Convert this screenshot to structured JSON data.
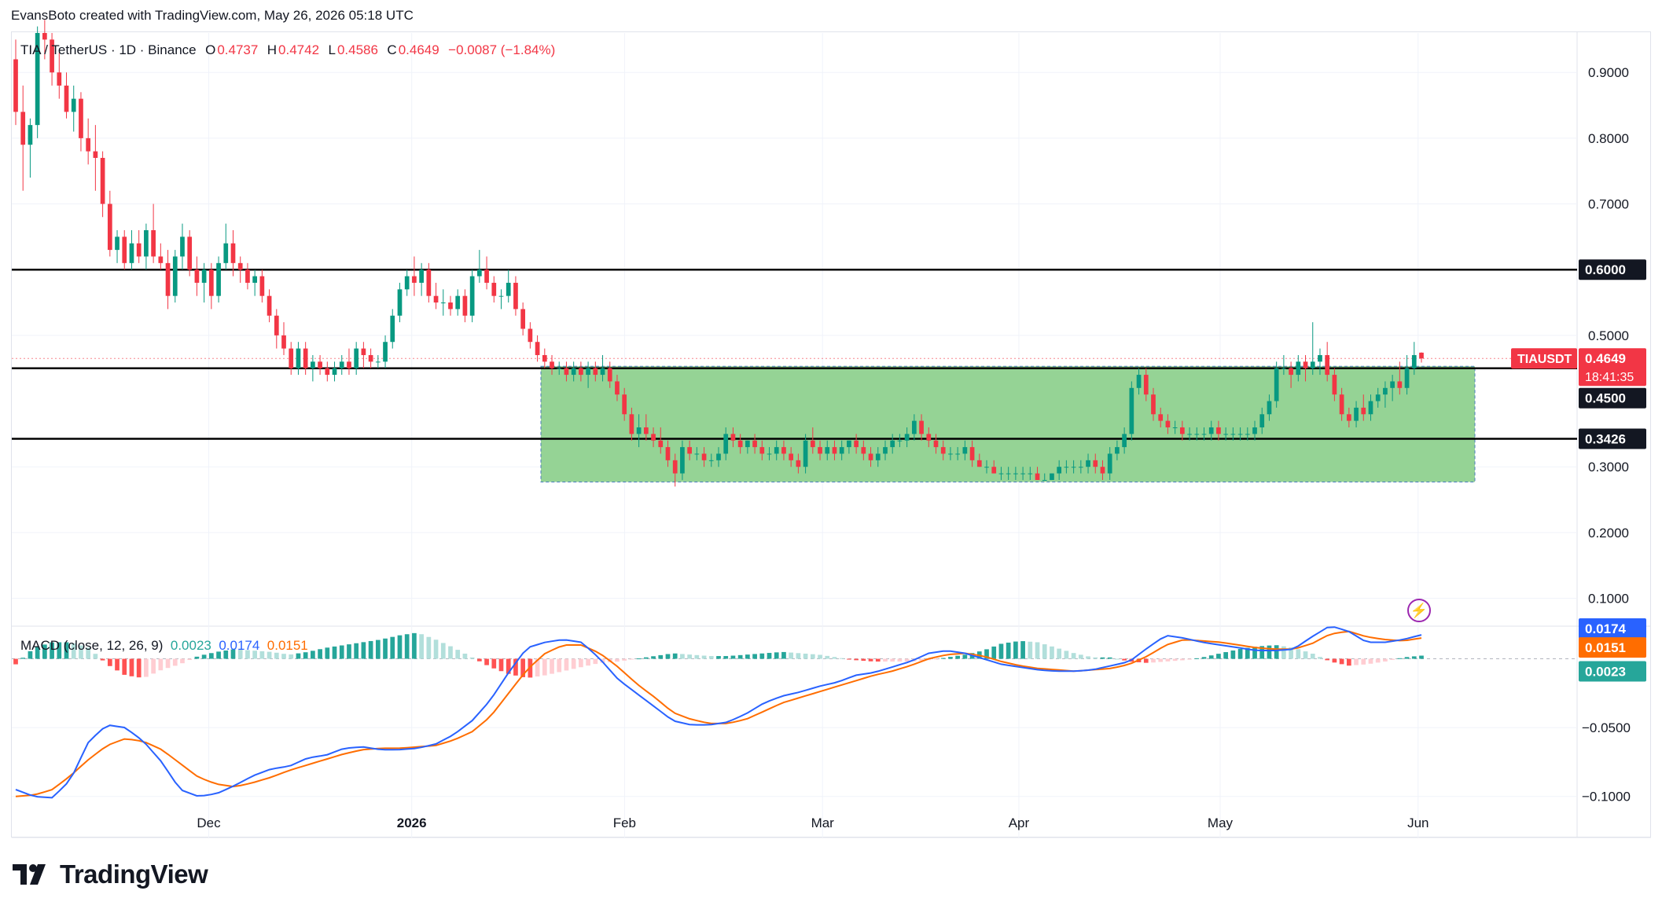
{
  "attribution": "EvansBoto created with TradingView.com, May 26, 2026 05:18 UTC",
  "legend": {
    "symbol": "TIA / TetherUS · 1D · Binance",
    "open_label": "O",
    "open": "0.4737",
    "high_label": "H",
    "high": "0.4742",
    "low_label": "L",
    "low": "0.4586",
    "close_label": "C",
    "close": "0.4649",
    "change": "−0.0087 (−1.84%)"
  },
  "macd_legend": {
    "label": "MACD (close, 12, 26, 9)",
    "hist": "0.0023",
    "macd": "0.0174",
    "signal": "0.0151"
  },
  "price_badge": {
    "symbol": "TIAUSDT",
    "price": "0.4649",
    "countdown": "18:41:35"
  },
  "level_labels": [
    "0.6000",
    "0.4500",
    "0.3426"
  ],
  "macd_badges": {
    "macd": "0.0174",
    "signal": "0.0151",
    "hist": "0.0023"
  },
  "brand": "TradingView",
  "colors": {
    "up": "#089981",
    "down": "#f23645",
    "macd": "#2962ff",
    "signal": "#ff6d00",
    "box": "#8fd18f",
    "hist_up_strong": "#26a69a",
    "hist_up_weak": "#b2dfdb",
    "hist_dn_strong": "#ff5252",
    "hist_dn_weak": "#ffcdd2"
  },
  "chart_data": {
    "type": "candlestick",
    "price_axis": {
      "ticks": [
        "0.9000",
        "0.8000",
        "0.7000",
        "0.5000",
        "0.3000",
        "0.2000",
        "0.1000"
      ],
      "range": [
        0.06,
        0.96
      ]
    },
    "macd_axis": {
      "ticks": [
        "-0.0500",
        "-0.1000"
      ],
      "range": [
        -0.115,
        0.022
      ]
    },
    "time_axis": {
      "labels": [
        "Dec",
        "2026",
        "Feb",
        "Mar",
        "Apr",
        "May",
        "Jun"
      ]
    },
    "horizontal_levels": [
      0.6,
      0.45,
      0.3426
    ],
    "range_box": {
      "low": 0.277,
      "high": 0.453,
      "from": "2026-01-18",
      "to": "2026-06-01"
    },
    "candles": [
      [
        0.92,
        0.95,
        0.82,
        0.84
      ],
      [
        0.84,
        0.88,
        0.72,
        0.79
      ],
      [
        0.79,
        0.83,
        0.74,
        0.82
      ],
      [
        0.82,
        0.97,
        0.8,
        0.96
      ],
      [
        0.96,
        0.98,
        0.92,
        0.95
      ],
      [
        0.95,
        0.96,
        0.88,
        0.9
      ],
      [
        0.9,
        0.93,
        0.86,
        0.88
      ],
      [
        0.88,
        0.9,
        0.83,
        0.84
      ],
      [
        0.84,
        0.88,
        0.81,
        0.86
      ],
      [
        0.86,
        0.87,
        0.78,
        0.8
      ],
      [
        0.8,
        0.83,
        0.76,
        0.78
      ],
      [
        0.78,
        0.82,
        0.72,
        0.77
      ],
      [
        0.77,
        0.78,
        0.68,
        0.7
      ],
      [
        0.7,
        0.72,
        0.62,
        0.63
      ],
      [
        0.63,
        0.66,
        0.61,
        0.65
      ],
      [
        0.65,
        0.66,
        0.6,
        0.61
      ],
      [
        0.61,
        0.66,
        0.6,
        0.64
      ],
      [
        0.64,
        0.66,
        0.61,
        0.62
      ],
      [
        0.62,
        0.67,
        0.6,
        0.66
      ],
      [
        0.66,
        0.7,
        0.61,
        0.62
      ],
      [
        0.62,
        0.64,
        0.6,
        0.61
      ],
      [
        0.61,
        0.63,
        0.54,
        0.56
      ],
      [
        0.56,
        0.63,
        0.55,
        0.62
      ],
      [
        0.62,
        0.67,
        0.6,
        0.65
      ],
      [
        0.65,
        0.66,
        0.59,
        0.6
      ],
      [
        0.6,
        0.62,
        0.56,
        0.58
      ],
      [
        0.58,
        0.61,
        0.55,
        0.6
      ],
      [
        0.6,
        0.61,
        0.54,
        0.56
      ],
      [
        0.56,
        0.62,
        0.55,
        0.61
      ],
      [
        0.61,
        0.67,
        0.6,
        0.64
      ],
      [
        0.64,
        0.66,
        0.59,
        0.61
      ],
      [
        0.61,
        0.62,
        0.58,
        0.6
      ],
      [
        0.6,
        0.61,
        0.57,
        0.58
      ],
      [
        0.58,
        0.6,
        0.56,
        0.59
      ],
      [
        0.59,
        0.6,
        0.55,
        0.56
      ],
      [
        0.56,
        0.57,
        0.52,
        0.53
      ],
      [
        0.53,
        0.54,
        0.48,
        0.5
      ],
      [
        0.5,
        0.52,
        0.47,
        0.48
      ],
      [
        0.48,
        0.49,
        0.44,
        0.45
      ],
      [
        0.45,
        0.49,
        0.44,
        0.48
      ],
      [
        0.48,
        0.49,
        0.44,
        0.45
      ],
      [
        0.45,
        0.47,
        0.43,
        0.46
      ],
      [
        0.46,
        0.47,
        0.44,
        0.45
      ],
      [
        0.45,
        0.46,
        0.43,
        0.44
      ],
      [
        0.44,
        0.46,
        0.43,
        0.45
      ],
      [
        0.45,
        0.47,
        0.44,
        0.46
      ],
      [
        0.46,
        0.48,
        0.44,
        0.45
      ],
      [
        0.45,
        0.49,
        0.44,
        0.48
      ],
      [
        0.48,
        0.49,
        0.45,
        0.47
      ],
      [
        0.47,
        0.48,
        0.45,
        0.46
      ],
      [
        0.46,
        0.47,
        0.45,
        0.46
      ],
      [
        0.46,
        0.5,
        0.45,
        0.49
      ],
      [
        0.49,
        0.54,
        0.48,
        0.53
      ],
      [
        0.53,
        0.58,
        0.52,
        0.57
      ],
      [
        0.57,
        0.6,
        0.56,
        0.59
      ],
      [
        0.59,
        0.62,
        0.56,
        0.58
      ],
      [
        0.58,
        0.61,
        0.56,
        0.6
      ],
      [
        0.6,
        0.61,
        0.55,
        0.56
      ],
      [
        0.56,
        0.58,
        0.54,
        0.55
      ],
      [
        0.55,
        0.57,
        0.53,
        0.55
      ],
      [
        0.55,
        0.56,
        0.53,
        0.54
      ],
      [
        0.54,
        0.57,
        0.53,
        0.56
      ],
      [
        0.56,
        0.57,
        0.52,
        0.53
      ],
      [
        0.53,
        0.6,
        0.52,
        0.59
      ],
      [
        0.59,
        0.63,
        0.58,
        0.6
      ],
      [
        0.6,
        0.62,
        0.57,
        0.58
      ],
      [
        0.58,
        0.59,
        0.55,
        0.56
      ],
      [
        0.56,
        0.57,
        0.54,
        0.56
      ],
      [
        0.56,
        0.6,
        0.55,
        0.58
      ],
      [
        0.58,
        0.59,
        0.53,
        0.54
      ],
      [
        0.54,
        0.55,
        0.5,
        0.51
      ],
      [
        0.51,
        0.52,
        0.48,
        0.49
      ],
      [
        0.49,
        0.5,
        0.46,
        0.47
      ],
      [
        0.47,
        0.48,
        0.45,
        0.46
      ],
      [
        0.46,
        0.47,
        0.44,
        0.45
      ],
      [
        0.45,
        0.46,
        0.44,
        0.45
      ],
      [
        0.45,
        0.46,
        0.43,
        0.44
      ],
      [
        0.44,
        0.46,
        0.43,
        0.45
      ],
      [
        0.45,
        0.46,
        0.43,
        0.44
      ],
      [
        0.44,
        0.46,
        0.42,
        0.45
      ],
      [
        0.45,
        0.46,
        0.43,
        0.44
      ],
      [
        0.44,
        0.47,
        0.43,
        0.45
      ],
      [
        0.45,
        0.46,
        0.42,
        0.43
      ],
      [
        0.43,
        0.44,
        0.4,
        0.41
      ],
      [
        0.41,
        0.42,
        0.37,
        0.38
      ],
      [
        0.38,
        0.39,
        0.34,
        0.35
      ],
      [
        0.35,
        0.38,
        0.33,
        0.36
      ],
      [
        0.36,
        0.38,
        0.34,
        0.35
      ],
      [
        0.35,
        0.36,
        0.33,
        0.34
      ],
      [
        0.34,
        0.36,
        0.32,
        0.33
      ],
      [
        0.33,
        0.34,
        0.3,
        0.31
      ],
      [
        0.31,
        0.32,
        0.27,
        0.29
      ],
      [
        0.29,
        0.34,
        0.28,
        0.33
      ],
      [
        0.33,
        0.34,
        0.31,
        0.32
      ],
      [
        0.32,
        0.33,
        0.31,
        0.32
      ],
      [
        0.32,
        0.33,
        0.3,
        0.31
      ],
      [
        0.31,
        0.32,
        0.3,
        0.31
      ],
      [
        0.31,
        0.33,
        0.3,
        0.32
      ],
      [
        0.32,
        0.36,
        0.31,
        0.35
      ],
      [
        0.35,
        0.36,
        0.33,
        0.34
      ],
      [
        0.34,
        0.35,
        0.32,
        0.33
      ],
      [
        0.33,
        0.34,
        0.32,
        0.34
      ],
      [
        0.34,
        0.35,
        0.32,
        0.33
      ],
      [
        0.33,
        0.34,
        0.31,
        0.32
      ],
      [
        0.32,
        0.33,
        0.31,
        0.32
      ],
      [
        0.32,
        0.34,
        0.31,
        0.33
      ],
      [
        0.33,
        0.34,
        0.31,
        0.32
      ],
      [
        0.32,
        0.33,
        0.3,
        0.31
      ],
      [
        0.31,
        0.32,
        0.29,
        0.3
      ],
      [
        0.3,
        0.35,
        0.29,
        0.34
      ],
      [
        0.34,
        0.36,
        0.32,
        0.33
      ],
      [
        0.33,
        0.34,
        0.31,
        0.32
      ],
      [
        0.32,
        0.34,
        0.31,
        0.33
      ],
      [
        0.33,
        0.34,
        0.31,
        0.32
      ],
      [
        0.32,
        0.34,
        0.31,
        0.33
      ],
      [
        0.33,
        0.34,
        0.32,
        0.34
      ],
      [
        0.34,
        0.35,
        0.32,
        0.33
      ],
      [
        0.33,
        0.34,
        0.31,
        0.32
      ],
      [
        0.32,
        0.33,
        0.3,
        0.31
      ],
      [
        0.31,
        0.33,
        0.3,
        0.32
      ],
      [
        0.32,
        0.34,
        0.31,
        0.33
      ],
      [
        0.33,
        0.35,
        0.32,
        0.34
      ],
      [
        0.34,
        0.35,
        0.33,
        0.34
      ],
      [
        0.34,
        0.36,
        0.33,
        0.35
      ],
      [
        0.35,
        0.38,
        0.34,
        0.37
      ],
      [
        0.37,
        0.38,
        0.34,
        0.35
      ],
      [
        0.35,
        0.36,
        0.33,
        0.34
      ],
      [
        0.34,
        0.35,
        0.32,
        0.33
      ],
      [
        0.33,
        0.34,
        0.31,
        0.32
      ],
      [
        0.32,
        0.33,
        0.31,
        0.32
      ],
      [
        0.32,
        0.33,
        0.31,
        0.32
      ],
      [
        0.32,
        0.34,
        0.31,
        0.33
      ],
      [
        0.33,
        0.34,
        0.3,
        0.31
      ],
      [
        0.31,
        0.32,
        0.3,
        0.3
      ],
      [
        0.3,
        0.31,
        0.29,
        0.3
      ],
      [
        0.3,
        0.31,
        0.29,
        0.29
      ],
      [
        0.29,
        0.3,
        0.28,
        0.29
      ],
      [
        0.29,
        0.3,
        0.28,
        0.29
      ],
      [
        0.29,
        0.3,
        0.28,
        0.29
      ],
      [
        0.29,
        0.3,
        0.28,
        0.29
      ],
      [
        0.29,
        0.3,
        0.28,
        0.29
      ],
      [
        0.29,
        0.3,
        0.28,
        0.28
      ],
      [
        0.28,
        0.29,
        0.28,
        0.28
      ],
      [
        0.28,
        0.29,
        0.28,
        0.29
      ],
      [
        0.29,
        0.31,
        0.28,
        0.3
      ],
      [
        0.3,
        0.31,
        0.29,
        0.3
      ],
      [
        0.3,
        0.31,
        0.29,
        0.3
      ],
      [
        0.3,
        0.31,
        0.29,
        0.3
      ],
      [
        0.3,
        0.32,
        0.29,
        0.31
      ],
      [
        0.31,
        0.32,
        0.29,
        0.3
      ],
      [
        0.3,
        0.31,
        0.28,
        0.29
      ],
      [
        0.29,
        0.33,
        0.28,
        0.32
      ],
      [
        0.32,
        0.34,
        0.31,
        0.33
      ],
      [
        0.33,
        0.36,
        0.32,
        0.35
      ],
      [
        0.35,
        0.43,
        0.34,
        0.42
      ],
      [
        0.42,
        0.45,
        0.41,
        0.44
      ],
      [
        0.44,
        0.45,
        0.4,
        0.41
      ],
      [
        0.41,
        0.42,
        0.37,
        0.38
      ],
      [
        0.38,
        0.39,
        0.36,
        0.37
      ],
      [
        0.37,
        0.38,
        0.35,
        0.36
      ],
      [
        0.36,
        0.37,
        0.35,
        0.36
      ],
      [
        0.36,
        0.37,
        0.34,
        0.35
      ],
      [
        0.35,
        0.36,
        0.34,
        0.35
      ],
      [
        0.35,
        0.36,
        0.34,
        0.35
      ],
      [
        0.35,
        0.36,
        0.34,
        0.35
      ],
      [
        0.35,
        0.37,
        0.34,
        0.36
      ],
      [
        0.36,
        0.37,
        0.34,
        0.35
      ],
      [
        0.35,
        0.36,
        0.34,
        0.35
      ],
      [
        0.35,
        0.36,
        0.34,
        0.35
      ],
      [
        0.35,
        0.36,
        0.34,
        0.35
      ],
      [
        0.35,
        0.36,
        0.34,
        0.35
      ],
      [
        0.35,
        0.37,
        0.34,
        0.36
      ],
      [
        0.36,
        0.39,
        0.35,
        0.38
      ],
      [
        0.38,
        0.41,
        0.37,
        0.4
      ],
      [
        0.4,
        0.46,
        0.39,
        0.45
      ],
      [
        0.45,
        0.47,
        0.44,
        0.45
      ],
      [
        0.45,
        0.46,
        0.42,
        0.44
      ],
      [
        0.44,
        0.47,
        0.43,
        0.46
      ],
      [
        0.46,
        0.47,
        0.43,
        0.45
      ],
      [
        0.45,
        0.52,
        0.44,
        0.46
      ],
      [
        0.46,
        0.48,
        0.44,
        0.47
      ],
      [
        0.47,
        0.49,
        0.43,
        0.44
      ],
      [
        0.44,
        0.45,
        0.4,
        0.41
      ],
      [
        0.41,
        0.42,
        0.37,
        0.38
      ],
      [
        0.38,
        0.39,
        0.36,
        0.37
      ],
      [
        0.37,
        0.4,
        0.36,
        0.39
      ],
      [
        0.39,
        0.41,
        0.37,
        0.38
      ],
      [
        0.38,
        0.41,
        0.37,
        0.4
      ],
      [
        0.4,
        0.42,
        0.39,
        0.41
      ],
      [
        0.41,
        0.43,
        0.39,
        0.42
      ],
      [
        0.42,
        0.44,
        0.4,
        0.43
      ],
      [
        0.43,
        0.46,
        0.41,
        0.42
      ],
      [
        0.42,
        0.47,
        0.41,
        0.45
      ],
      [
        0.45,
        0.49,
        0.44,
        0.47
      ],
      [
        0.4737,
        0.4742,
        0.4586,
        0.4649
      ]
    ],
    "macd_hist_sample": [
      -0.004,
      0.008,
      0.012,
      0.012,
      0.008,
      -0.004,
      -0.012,
      -0.014,
      -0.008,
      -0.004,
      0.002,
      0.005,
      0.007,
      0.006,
      0.005,
      0.003,
      0.005,
      0.008,
      0.01,
      0.012,
      0.014,
      0.017,
      0.019,
      0.014,
      0.008,
      0.001,
      -0.006,
      -0.011,
      -0.014,
      -0.012,
      -0.009,
      -0.006,
      -0.003,
      -0.002,
      0.0,
      0.002,
      0.004,
      0.003,
      0.002,
      0.002,
      0.003,
      0.004,
      0.005,
      0.004,
      0.003,
      0.001,
      -0.001,
      -0.002,
      -0.002,
      -0.002,
      -0.001,
      0.001,
      0.003,
      0.006,
      0.011,
      0.013,
      0.012,
      0.008,
      0.004,
      0.001,
      0.001,
      -0.002,
      -0.003,
      -0.002,
      -0.001,
      0.001,
      0.004,
      0.007,
      0.009,
      0.01,
      0.008,
      0.004,
      -0.002,
      -0.005,
      -0.004,
      -0.002,
      0.001,
      0.0023
    ],
    "macd_line_sample": [
      -0.095,
      -0.1,
      -0.101,
      -0.088,
      -0.06,
      -0.048,
      -0.05,
      -0.06,
      -0.075,
      -0.095,
      -0.1,
      -0.098,
      -0.092,
      -0.085,
      -0.08,
      -0.078,
      -0.072,
      -0.07,
      -0.065,
      -0.064,
      -0.066,
      -0.066,
      -0.065,
      -0.062,
      -0.055,
      -0.045,
      -0.03,
      -0.01,
      0.008,
      0.012,
      0.014,
      0.012,
      0.0,
      -0.015,
      -0.025,
      -0.035,
      -0.045,
      -0.048,
      -0.048,
      -0.046,
      -0.04,
      -0.032,
      -0.027,
      -0.024,
      -0.02,
      -0.017,
      -0.012,
      -0.01,
      -0.006,
      -0.002,
      0.004,
      0.006,
      0.004,
      0.0,
      -0.004,
      -0.006,
      -0.008,
      -0.009,
      -0.009,
      -0.008,
      -0.005,
      -0.002,
      0.008,
      0.017,
      0.015,
      0.012,
      0.01,
      0.008,
      0.006,
      0.006,
      0.007,
      0.016,
      0.024,
      0.02,
      0.012,
      0.012,
      0.014,
      0.0174
    ],
    "signal_line_sample": [
      -0.1,
      -0.099,
      -0.095,
      -0.085,
      -0.073,
      -0.063,
      -0.058,
      -0.06,
      -0.066,
      -0.076,
      -0.086,
      -0.091,
      -0.093,
      -0.09,
      -0.086,
      -0.081,
      -0.077,
      -0.073,
      -0.069,
      -0.066,
      -0.065,
      -0.065,
      -0.064,
      -0.063,
      -0.059,
      -0.053,
      -0.042,
      -0.025,
      -0.008,
      0.004,
      0.01,
      0.01,
      0.004,
      -0.006,
      -0.018,
      -0.028,
      -0.039,
      -0.044,
      -0.047,
      -0.047,
      -0.044,
      -0.038,
      -0.032,
      -0.028,
      -0.024,
      -0.02,
      -0.016,
      -0.012,
      -0.009,
      -0.005,
      0.0,
      0.003,
      0.004,
      0.002,
      -0.002,
      -0.005,
      -0.007,
      -0.008,
      -0.009,
      -0.008,
      -0.007,
      -0.004,
      0.002,
      0.01,
      0.014,
      0.013,
      0.012,
      0.01,
      0.008,
      0.007,
      0.007,
      0.011,
      0.018,
      0.02,
      0.016,
      0.014,
      0.013,
      0.0151
    ]
  }
}
